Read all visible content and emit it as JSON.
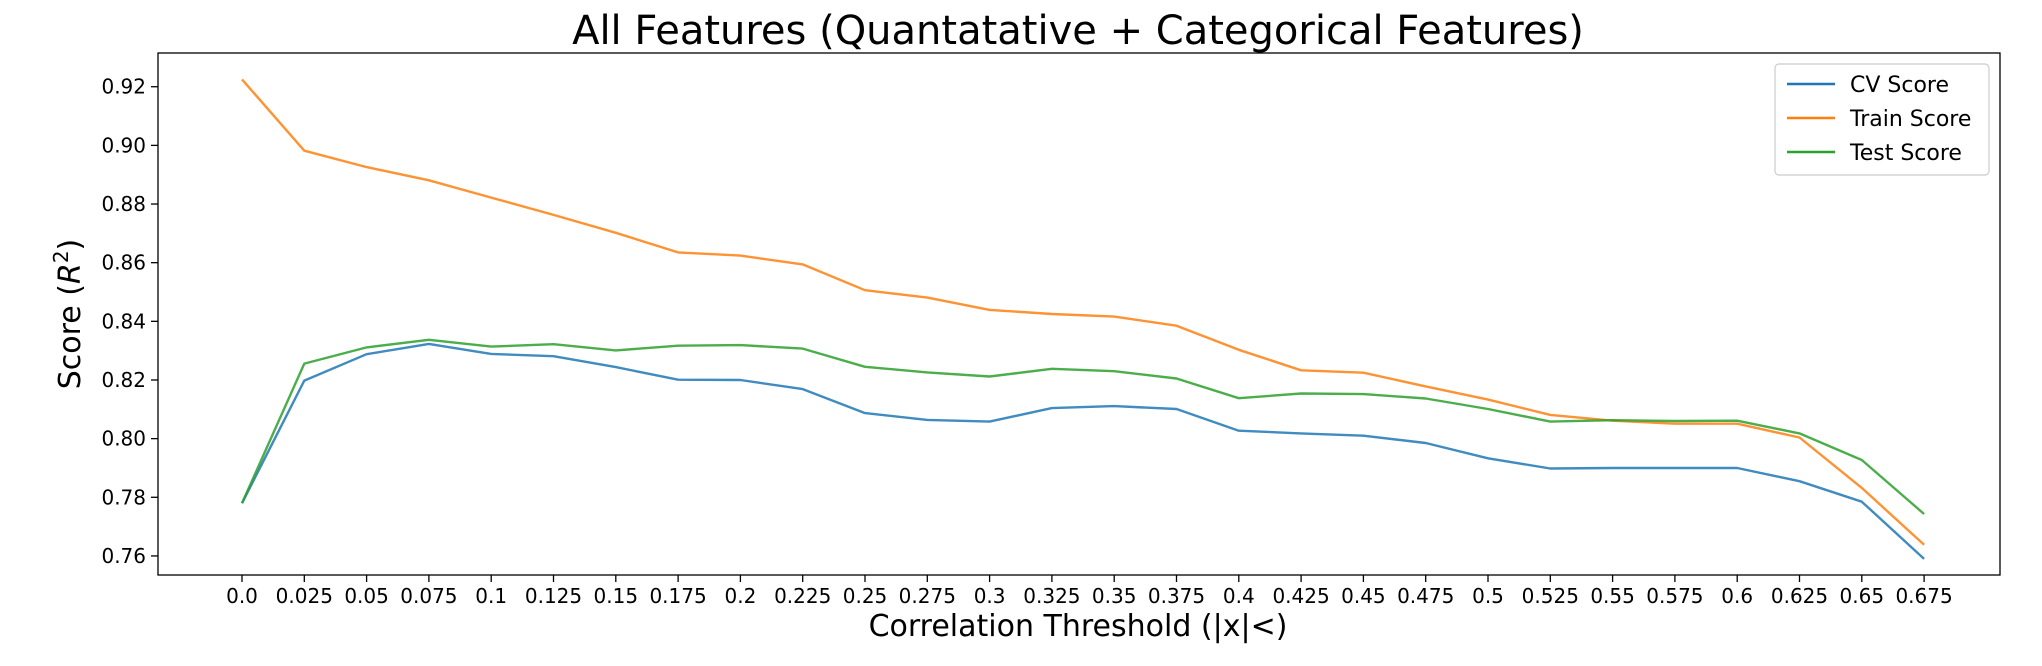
{
  "chart_data": {
    "type": "line",
    "title": "All Features (Quantatative + Categorical Features)",
    "xlabel": "Correlation Threshold (|x|<)",
    "ylabel_prefix": "Score (",
    "ylabel_var": "R",
    "ylabel_sup": "2",
    "ylabel_suffix": ")",
    "x_ticklabels": [
      "0.0",
      "0.025",
      "0.05",
      "0.075",
      "0.1",
      "0.125",
      "0.15",
      "0.175",
      "0.2",
      "0.225",
      "0.25",
      "0.275",
      "0.3",
      "0.325",
      "0.35",
      "0.375",
      "0.4",
      "0.425",
      "0.45",
      "0.475",
      "0.5",
      "0.525",
      "0.55",
      "0.575",
      "0.6",
      "0.625",
      "0.65",
      "0.675"
    ],
    "y_ticks": [
      "0.76",
      "0.78",
      "0.80",
      "0.82",
      "0.84",
      "0.86",
      "0.88",
      "0.90",
      "0.92"
    ],
    "ylim": [
      0.7535,
      0.9315
    ],
    "grid": false,
    "legend_position": "upper right",
    "series": [
      {
        "name": "CV Score",
        "color": "#1f77b4",
        "values": [
          0.778,
          0.8198,
          0.8288,
          0.8323,
          0.8289,
          0.8281,
          0.8244,
          0.8201,
          0.82,
          0.8169,
          0.8087,
          0.8064,
          0.8058,
          0.8104,
          0.8111,
          0.8101,
          0.8027,
          0.8018,
          0.801,
          0.7985,
          0.7933,
          0.7898,
          0.79,
          0.79,
          0.79,
          0.7855,
          0.7785,
          0.759
        ]
      },
      {
        "name": "Train Score",
        "color": "#ff7f0e",
        "values": [
          0.9225,
          0.8982,
          0.8926,
          0.8881,
          0.8822,
          0.8763,
          0.8702,
          0.8635,
          0.8624,
          0.8594,
          0.8506,
          0.8481,
          0.8439,
          0.8425,
          0.8416,
          0.8385,
          0.8303,
          0.8233,
          0.8225,
          0.8178,
          0.8133,
          0.8081,
          0.8061,
          0.8051,
          0.8051,
          0.8004,
          0.7832,
          0.7638
        ]
      },
      {
        "name": "Test Score",
        "color": "#2ca02c",
        "values": [
          0.778,
          0.8256,
          0.8311,
          0.8337,
          0.8314,
          0.8322,
          0.8301,
          0.8317,
          0.8319,
          0.8307,
          0.8245,
          0.8226,
          0.8212,
          0.8238,
          0.823,
          0.8205,
          0.8138,
          0.8154,
          0.8152,
          0.8137,
          0.8101,
          0.8058,
          0.8063,
          0.806,
          0.8061,
          0.8018,
          0.7927,
          0.7743
        ]
      }
    ]
  }
}
